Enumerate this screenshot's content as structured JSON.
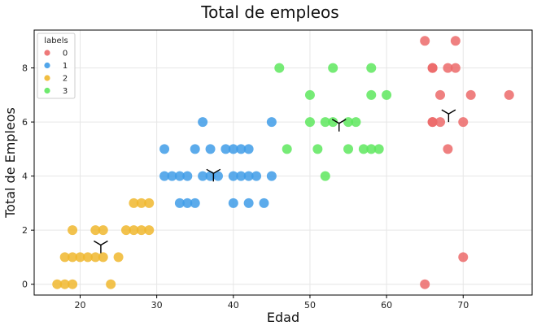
{
  "chart_data": {
    "type": "scatter",
    "title": "Total de empleos",
    "xlabel": "Edad",
    "ylabel": "Total de Empleos",
    "xlim": [
      14,
      79
    ],
    "ylim": [
      -0.4,
      9.4
    ],
    "xticks": [
      20,
      30,
      40,
      50,
      60,
      70
    ],
    "yticks": [
      0,
      2,
      4,
      6,
      8
    ],
    "grid": true,
    "legend": {
      "title": "labels",
      "placement": "top-left"
    },
    "series": [
      {
        "name": "0",
        "color": "#ec6a6a",
        "points": [
          [
            65,
            9
          ],
          [
            69,
            9
          ],
          [
            66,
            8
          ],
          [
            66,
            8
          ],
          [
            68,
            8
          ],
          [
            69,
            8
          ],
          [
            67,
            7
          ],
          [
            71,
            7
          ],
          [
            76,
            7
          ],
          [
            66,
            6
          ],
          [
            66,
            6
          ],
          [
            67,
            6
          ],
          [
            70,
            6
          ],
          [
            68,
            5
          ],
          [
            70,
            1
          ],
          [
            65,
            0
          ]
        ]
      },
      {
        "name": "1",
        "color": "#3f9ce8",
        "points": [
          [
            36,
            6
          ],
          [
            45,
            6
          ],
          [
            31,
            5
          ],
          [
            35,
            5
          ],
          [
            37,
            5
          ],
          [
            39,
            5
          ],
          [
            40,
            5
          ],
          [
            41,
            5
          ],
          [
            42,
            5
          ],
          [
            31,
            4
          ],
          [
            32,
            4
          ],
          [
            33,
            4
          ],
          [
            34,
            4
          ],
          [
            36,
            4
          ],
          [
            37,
            4
          ],
          [
            38,
            4
          ],
          [
            40,
            4
          ],
          [
            41,
            4
          ],
          [
            42,
            4
          ],
          [
            43,
            4
          ],
          [
            45,
            4
          ],
          [
            33,
            3
          ],
          [
            34,
            3
          ],
          [
            35,
            3
          ],
          [
            40,
            3
          ],
          [
            42,
            3
          ],
          [
            44,
            3
          ]
        ]
      },
      {
        "name": "2",
        "color": "#f0b72e",
        "points": [
          [
            27,
            3
          ],
          [
            28,
            3
          ],
          [
            29,
            3
          ],
          [
            19,
            2
          ],
          [
            22,
            2
          ],
          [
            23,
            2
          ],
          [
            26,
            2
          ],
          [
            27,
            2
          ],
          [
            28,
            2
          ],
          [
            29,
            2
          ],
          [
            18,
            1
          ],
          [
            19,
            1
          ],
          [
            20,
            1
          ],
          [
            21,
            1
          ],
          [
            22,
            1
          ],
          [
            23,
            1
          ],
          [
            25,
            1
          ],
          [
            17,
            0
          ],
          [
            18,
            0
          ],
          [
            19,
            0
          ],
          [
            24,
            0
          ]
        ]
      },
      {
        "name": "3",
        "color": "#5ee85e",
        "points": [
          [
            46,
            8
          ],
          [
            53,
            8
          ],
          [
            58,
            8
          ],
          [
            50,
            7
          ],
          [
            58,
            7
          ],
          [
            60,
            7
          ],
          [
            50,
            6
          ],
          [
            52,
            6
          ],
          [
            53,
            6
          ],
          [
            55,
            6
          ],
          [
            56,
            6
          ],
          [
            47,
            5
          ],
          [
            51,
            5
          ],
          [
            55,
            5
          ],
          [
            57,
            5
          ],
          [
            58,
            5
          ],
          [
            59,
            5
          ],
          [
            52,
            4
          ]
        ]
      }
    ],
    "centroids": [
      [
        22.7,
        1.45
      ],
      [
        37.4,
        4.1
      ],
      [
        53.8,
        5.95
      ],
      [
        68.1,
        6.3
      ]
    ]
  }
}
